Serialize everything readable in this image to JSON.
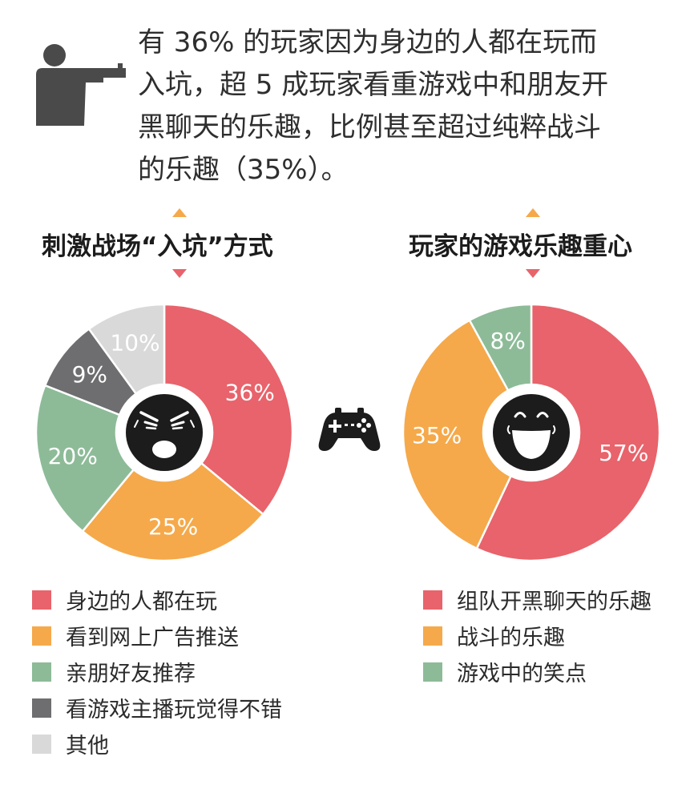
{
  "headline": {
    "lines": [
      "有 36% 的玩家因为身边的人都在玩而",
      "入坑，超 5 成玩家看重游戏中和朋友开",
      "黑聊天的乐趣，比例甚至超过纯粹战斗",
      "的乐趣（35%）。"
    ]
  },
  "icons": {
    "headline_icon": "gun-icon",
    "center_left": "angry-face-icon",
    "center_right": "laughing-face-icon",
    "middle": "game-controller-icon",
    "title_markers": "triangle-icon"
  },
  "colors": {
    "red": "#e8636b",
    "orange": "#f5a94a",
    "green": "#8dbb98",
    "dark_gray": "#6e6e70",
    "light_gray": "#d9d9d9",
    "marker_orange": "#f5a94a",
    "marker_red": "#e8636b",
    "face": "#1c1c1c"
  },
  "chart_data": [
    {
      "type": "pie",
      "donut": true,
      "title": "刺激战场“入坑”方式",
      "categories": [
        "身边的人都在玩",
        "看到网上广告推送",
        "亲朋好友推荐",
        "看游戏主播玩觉得不错",
        "其他"
      ],
      "values": [
        36,
        25,
        20,
        9,
        10
      ],
      "labels": [
        "36%",
        "25%",
        "20%",
        "9%",
        "10%"
      ],
      "colors": [
        "#e8636b",
        "#f5a94a",
        "#8dbb98",
        "#6e6e70",
        "#d9d9d9"
      ],
      "legend": "bottom"
    },
    {
      "type": "pie",
      "donut": true,
      "title": "玩家的游戏乐趣重心",
      "categories": [
        "组队开黑聊天的乐趣",
        "战斗的乐趣",
        "游戏中的笑点"
      ],
      "values": [
        57,
        35,
        8
      ],
      "labels": [
        "57%",
        "35%",
        "8%"
      ],
      "colors": [
        "#e8636b",
        "#f5a94a",
        "#8dbb98"
      ],
      "legend": "bottom"
    }
  ]
}
